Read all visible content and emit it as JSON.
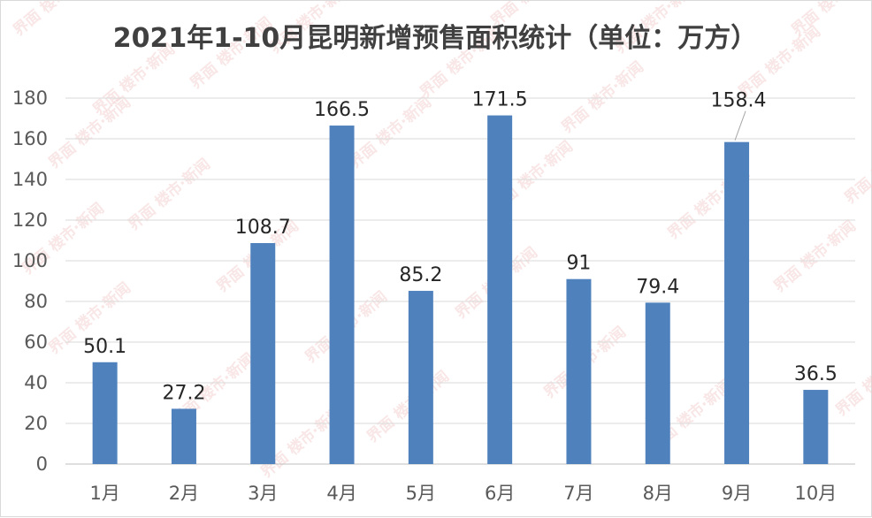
{
  "chart_data": {
    "type": "bar",
    "title": "2021年1-10月昆明新增预售面积统计（单位：万方）",
    "categories": [
      "1月",
      "2月",
      "3月",
      "4月",
      "5月",
      "6月",
      "7月",
      "8月",
      "9月",
      "10月"
    ],
    "values": [
      50.1,
      27.2,
      108.7,
      166.5,
      85.2,
      171.5,
      91,
      79.4,
      158.4,
      36.5
    ],
    "data_labels": [
      "50.1",
      "27.2",
      "108.7",
      "166.5",
      "85.2",
      "171.5",
      "91",
      "79.4",
      "158.4",
      "36.5"
    ],
    "ylim": [
      0,
      180
    ],
    "yticks": [
      0,
      20,
      40,
      60,
      80,
      100,
      120,
      140,
      160,
      180
    ],
    "xlabel": "",
    "ylabel": "",
    "grid": true,
    "legend": "none",
    "bar_color": "#4f81bd",
    "watermark": "界面 楼市·新闻"
  }
}
